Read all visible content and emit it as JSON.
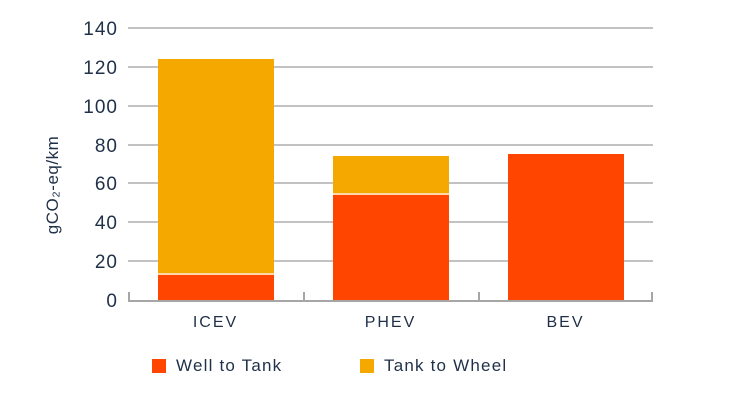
{
  "chart_data": {
    "type": "bar",
    "stacked": true,
    "title": "",
    "xlabel": "",
    "ylabel": "gCO₂-eq/km",
    "categories": [
      "ICEV",
      "PHEV",
      "BEV"
    ],
    "series": [
      {
        "name": "Well to Tank",
        "color": "#FF4500",
        "values": [
          13,
          54,
          75
        ]
      },
      {
        "name": "Tank to Wheel",
        "color": "#F5A800",
        "values": [
          111,
          20,
          0
        ]
      }
    ],
    "totals": [
      124,
      74,
      75
    ],
    "ylim": [
      0,
      140
    ],
    "ytick_step": 20,
    "yticks": [
      0,
      20,
      40,
      60,
      80,
      100,
      120,
      140
    ],
    "grid": true,
    "legend_position": "bottom"
  },
  "colors": {
    "text": "#1F3048",
    "gridline": "#c2c2c2",
    "axis": "#a6a6a6",
    "segment_separator": "#FFD9AD",
    "background": "#ffffff"
  }
}
